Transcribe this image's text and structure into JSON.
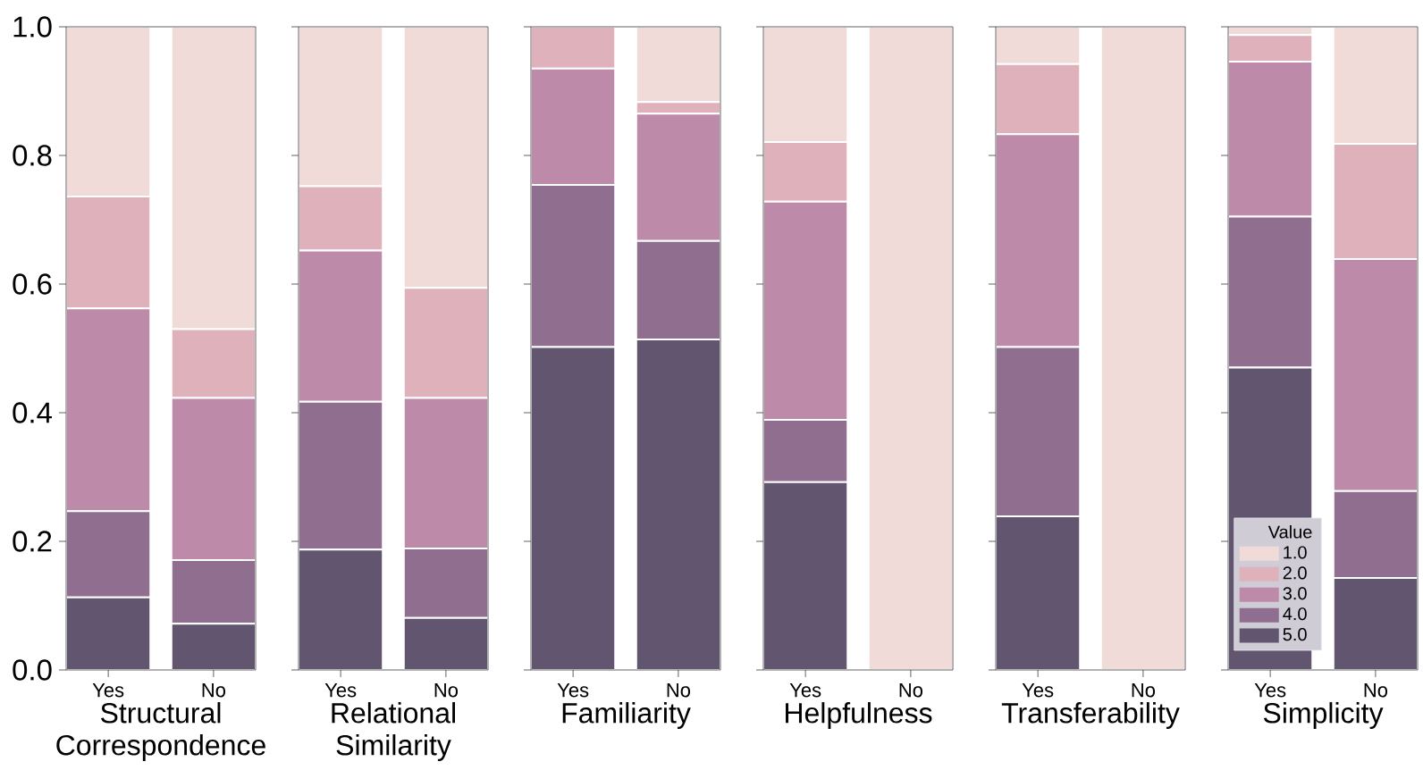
{
  "chart_data": [
    {
      "type": "bar",
      "stacked": true,
      "xlabel": "Structural Correspondence",
      "categories": [
        "Yes",
        "No"
      ],
      "ylim": [
        0,
        1
      ],
      "yticks": [
        {
          "value": 0,
          "label": "0.0"
        },
        {
          "value": 0.2,
          "label": "0.2"
        },
        {
          "value": 0.4,
          "label": "0.4"
        },
        {
          "value": 0.6,
          "label": "0.6"
        },
        {
          "value": 0.8,
          "label": "0.8"
        },
        {
          "value": 1,
          "label": "1.0"
        }
      ],
      "series": [
        {
          "color": "#625570",
          "values": [
            0.113,
            0.072
          ]
        },
        {
          "color": "#906e8f",
          "values": [
            0.134,
            0.099
          ]
        },
        {
          "color": "#be8aaa",
          "values": [
            0.315,
            0.252
          ]
        },
        {
          "color": "#deb1bb",
          "values": [
            0.174,
            0.107
          ]
        },
        {
          "color": "#f0dbd8",
          "values": [
            0.264,
            0.47
          ]
        }
      ]
    },
    {
      "type": "bar",
      "stacked": true,
      "xlabel": "Relational Similarity",
      "categories": [
        "Yes",
        "No"
      ],
      "tick_labels": "x",
      "ylim": [
        0,
        1
      ],
      "yticks": [
        {
          "value": 0,
          "label": null
        },
        {
          "value": 0.2,
          "label": null
        },
        {
          "value": 0.4,
          "label": null
        },
        {
          "value": 0.6,
          "label": null
        },
        {
          "value": 0.8,
          "label": null
        },
        {
          "value": 1,
          "label": null
        }
      ],
      "series": [
        {
          "color": "#625570",
          "values": [
            0.187,
            0.081
          ]
        },
        {
          "color": "#906e8f",
          "values": [
            0.23,
            0.108
          ]
        },
        {
          "color": "#be8aaa",
          "values": [
            0.235,
            0.234
          ]
        },
        {
          "color": "#deb1bb",
          "values": [
            0.1,
            0.171
          ]
        },
        {
          "color": "#f0dbd8",
          "values": [
            0.248,
            0.406
          ]
        }
      ]
    },
    {
      "type": "bar",
      "stacked": true,
      "xlabel": "Familiarity",
      "categories": [
        "Yes",
        "No"
      ],
      "tick_labels": "x",
      "ylim": [
        0,
        1
      ],
      "yticks": [
        {
          "value": 0,
          "label": null
        },
        {
          "value": 0.2,
          "label": null
        },
        {
          "value": 0.4,
          "label": null
        },
        {
          "value": 0.6,
          "label": null
        },
        {
          "value": 0.8,
          "label": null
        },
        {
          "value": 1,
          "label": null
        }
      ],
      "series": [
        {
          "color": "#625570",
          "values": [
            0.502,
            0.514
          ]
        },
        {
          "color": "#906e8f",
          "values": [
            0.252,
            0.153
          ]
        },
        {
          "color": "#be8aaa",
          "values": [
            0.181,
            0.198
          ]
        },
        {
          "color": "#deb1bb",
          "values": [
            0.065,
            0.018
          ]
        },
        {
          "color": "#f0dbd8",
          "values": [
            0,
            0.117
          ]
        }
      ]
    },
    {
      "type": "bar",
      "stacked": true,
      "xlabel": "Helpfulness",
      "categories": [
        "Yes",
        "No"
      ],
      "tick_labels": "x",
      "ylim": [
        0,
        1
      ],
      "yticks": [
        {
          "value": 0,
          "label": null
        },
        {
          "value": 0.2,
          "label": null
        },
        {
          "value": 0.4,
          "label": null
        },
        {
          "value": 0.6,
          "label": null
        },
        {
          "value": 0.8,
          "label": null
        },
        {
          "value": 1,
          "label": null
        }
      ],
      "series": [
        {
          "color": "#625570",
          "values": [
            0.292,
            0
          ]
        },
        {
          "color": "#906e8f",
          "values": [
            0.097,
            0
          ]
        },
        {
          "color": "#be8aaa",
          "values": [
            0.339,
            0
          ]
        },
        {
          "color": "#deb1bb",
          "values": [
            0.093,
            0
          ]
        },
        {
          "color": "#f0dbd8",
          "values": [
            0.179,
            1
          ]
        }
      ]
    },
    {
      "type": "bar",
      "stacked": true,
      "xlabel": "Transferability",
      "categories": [
        "Yes",
        "No"
      ],
      "tick_labels": "x",
      "ylim": [
        0,
        1
      ],
      "yticks": [
        {
          "value": 0,
          "label": null
        },
        {
          "value": 0.2,
          "label": null
        },
        {
          "value": 0.4,
          "label": null
        },
        {
          "value": 0.6,
          "label": null
        },
        {
          "value": 0.8,
          "label": null
        },
        {
          "value": 1,
          "label": null
        }
      ],
      "series": [
        {
          "color": "#625570",
          "values": [
            0.239,
            0
          ]
        },
        {
          "color": "#906e8f",
          "values": [
            0.263,
            0
          ]
        },
        {
          "color": "#be8aaa",
          "values": [
            0.331,
            0
          ]
        },
        {
          "color": "#deb1bb",
          "values": [
            0.109,
            0
          ]
        },
        {
          "color": "#f0dbd8",
          "values": [
            0.058,
            1
          ]
        }
      ]
    },
    {
      "type": "bar",
      "stacked": true,
      "xlabel": "Simplicity",
      "categories": [
        "Yes",
        "No"
      ],
      "tick_labels": "x",
      "ylim": [
        0,
        1
      ],
      "yticks": [
        {
          "value": 0,
          "label": null
        },
        {
          "value": 0.2,
          "label": null
        },
        {
          "value": 0.4,
          "label": null
        },
        {
          "value": 0.6,
          "label": null
        },
        {
          "value": 0.8,
          "label": null
        },
        {
          "value": 1,
          "label": null
        }
      ],
      "legend": "bottom left",
      "legend_title": "Value",
      "series": [
        {
          "name": "5.0",
          "color": "#625570",
          "values": [
            0.47,
            0.143
          ]
        },
        {
          "name": "4.0",
          "color": "#906e8f",
          "values": [
            0.235,
            0.135
          ]
        },
        {
          "name": "3.0",
          "color": "#be8aaa",
          "values": [
            0.241,
            0.361
          ]
        },
        {
          "name": "2.0",
          "color": "#deb1bb",
          "values": [
            0.041,
            0.179
          ]
        },
        {
          "name": "1.0",
          "color": "#f0dbd8",
          "values": [
            0.013,
            0.182
          ]
        }
      ]
    }
  ]
}
